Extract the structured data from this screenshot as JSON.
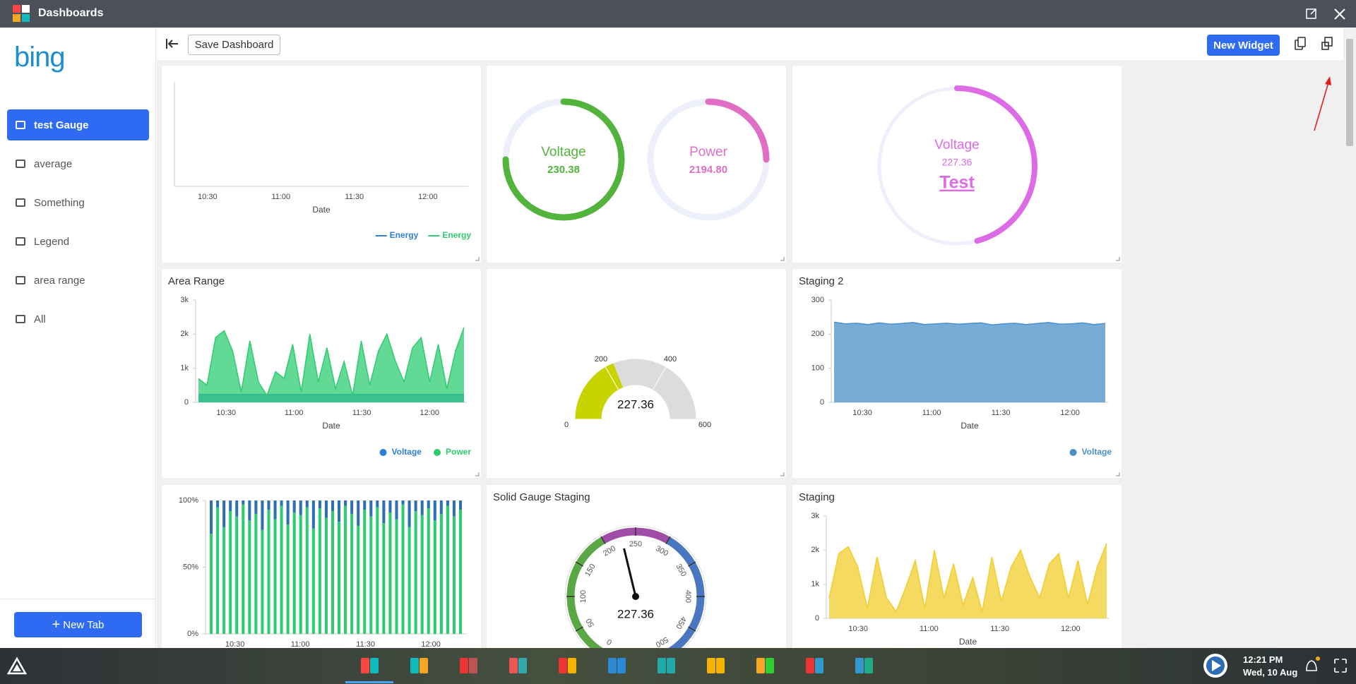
{
  "window": {
    "title": "Dashboards"
  },
  "sidebar": {
    "logo": "bing",
    "tabs": [
      "test Gauge",
      "average",
      "Something",
      "Legend",
      "area range",
      "All"
    ],
    "new_tab": "New Tab"
  },
  "toolbar": {
    "save_dashboard": "Save Dashboard",
    "new_widget": "New Widget"
  },
  "widgets": [
    {
      "type": "line",
      "xticks": [
        "10:30",
        "11:00",
        "11:30",
        "12:00"
      ],
      "xlabel": "Date",
      "series": [
        {
          "name": "Energy",
          "color": "#2f7ed8",
          "values": []
        },
        {
          "name": "Energy",
          "color": "#2ecc71",
          "values": []
        }
      ]
    },
    {
      "type": "ring_gauges",
      "gauges": [
        {
          "label": "Voltage",
          "value": "230.38",
          "color": "#52b43c"
        },
        {
          "label": "Power",
          "value": "2194.80",
          "color": "#e06ec4"
        }
      ]
    },
    {
      "type": "ring_gauge",
      "label": "Voltage",
      "value": "227.36",
      "link": "Test",
      "color": "#dd6be6"
    },
    {
      "type": "area",
      "title": "Area Range",
      "ylim": [
        0,
        3000
      ],
      "yticks": [
        0,
        {
          "value": 1000,
          "label": "1k"
        },
        {
          "value": 2000,
          "label": "2k"
        },
        {
          "value": 3000,
          "label": "3k"
        }
      ],
      "xticks": [
        "10:30",
        "11:00",
        "11:30",
        "12:00"
      ],
      "xlabel": "Date",
      "series": [
        {
          "name": "Voltage",
          "color": "#2f7ed8",
          "values": [
            230,
            230,
            230,
            230,
            230,
            230,
            230,
            230,
            230,
            230,
            230,
            230,
            230,
            230,
            230,
            230,
            230,
            230,
            230,
            230,
            230,
            230,
            230,
            230,
            230,
            230,
            230,
            230,
            230,
            230,
            230,
            230
          ]
        },
        {
          "name": "Power",
          "color": "#2ecc71",
          "values": [
            700,
            500,
            1900,
            2100,
            1500,
            300,
            1800,
            600,
            200,
            900,
            700,
            1700,
            300,
            2000,
            600,
            1600,
            400,
            1200,
            200,
            1800,
            500,
            1500,
            2000,
            1200,
            600,
            1600,
            1900,
            600,
            1700,
            400,
            1500,
            2200
          ]
        }
      ]
    },
    {
      "type": "solid_gauge",
      "ylim": [
        0,
        600
      ],
      "yticks": [
        0,
        200,
        400,
        600
      ],
      "value": 227.36,
      "color": "#c8d400"
    },
    {
      "type": "area",
      "title": "Staging 2",
      "ylim": [
        0,
        300
      ],
      "yticks": [
        0,
        100,
        200,
        300
      ],
      "xticks": [
        "10:30",
        "11:00",
        "11:30",
        "12:00"
      ],
      "xlabel": "Date",
      "series": [
        {
          "name": "Voltage",
          "color": "#4a90c8",
          "values": [
            235,
            230,
            232,
            228,
            233,
            229,
            231,
            234,
            228,
            230,
            232,
            229,
            231,
            233,
            227,
            230,
            232,
            228,
            231,
            234,
            229,
            230,
            233,
            228,
            231
          ]
        }
      ]
    },
    {
      "type": "stacked_percent",
      "ylim": [
        0,
        100
      ],
      "yticks": [
        {
          "value": 0,
          "label": "0%"
        },
        {
          "value": 50,
          "label": "50%"
        },
        {
          "value": 100,
          "label": "100%"
        }
      ],
      "xticks": [
        "10:30",
        "11:00",
        "11:30",
        "12:00"
      ],
      "series": [
        {
          "color": "#2ecc71",
          "values": [
            75,
            95,
            80,
            92,
            88,
            97,
            85,
            90,
            78,
            93,
            86,
            96,
            82,
            91,
            89,
            95,
            79,
            94,
            87,
            92,
            84,
            96,
            90,
            81,
            93,
            88,
            95,
            83,
            91,
            86,
            97,
            80,
            92,
            89,
            94,
            85,
            90,
            96,
            88,
            93
          ]
        },
        {
          "color": "#2f6fb5",
          "values": [
            25,
            5,
            20,
            8,
            12,
            3,
            15,
            10,
            22,
            7,
            14,
            4,
            18,
            9,
            11,
            5,
            21,
            6,
            13,
            8,
            16,
            4,
            10,
            19,
            7,
            12,
            5,
            17,
            9,
            14,
            3,
            20,
            8,
            11,
            6,
            15,
            10,
            4,
            12,
            7
          ]
        }
      ]
    },
    {
      "type": "speedometer",
      "title": "Solid Gauge Staging",
      "ylim": [
        0,
        500
      ],
      "yticks": [
        0,
        50,
        100,
        150,
        200,
        250,
        300,
        350,
        400,
        450,
        500
      ],
      "value": 227.36,
      "bands": [
        {
          "from": 0,
          "to": 200,
          "color": "#5aa845"
        },
        {
          "from": 200,
          "to": 300,
          "color": "#a04da8"
        },
        {
          "from": 300,
          "to": 500,
          "color": "#4a78c0"
        }
      ]
    },
    {
      "type": "area",
      "title": "Staging",
      "ylim": [
        0,
        3000
      ],
      "yticks": [
        0,
        {
          "value": 1000,
          "label": "1k"
        },
        {
          "value": 2000,
          "label": "2k"
        },
        {
          "value": 3000,
          "label": "3k"
        }
      ],
      "xticks": [
        "10:30",
        "11:00",
        "11:30",
        "12:00"
      ],
      "xlabel": "Date",
      "series": [
        {
          "color": "#f2cd2e",
          "values": [
            600,
            1900,
            2100,
            1500,
            300,
            1800,
            600,
            200,
            900,
            1700,
            300,
            2000,
            600,
            1600,
            400,
            1200,
            200,
            1800,
            500,
            1500,
            2000,
            1200,
            600,
            1600,
            1900,
            600,
            1700,
            400,
            1500,
            2200
          ]
        }
      ]
    }
  ],
  "taskbar": {
    "time": "12:21 PM",
    "date": "Wed, 10 Aug"
  }
}
